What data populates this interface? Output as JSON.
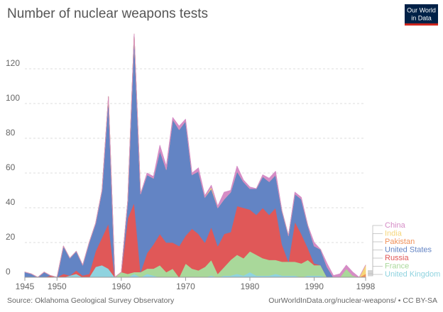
{
  "chart_data": {
    "type": "stacked-area",
    "title": "Number of nuclear weapons tests",
    "source": "Source: Oklahoma Geological Survey Observatory",
    "credit": "OurWorldInData.org/nuclear-weapons/ • CC BY-SA",
    "logo": [
      "Our World",
      "in Data"
    ],
    "x": [
      1945,
      1946,
      1947,
      1948,
      1949,
      1950,
      1951,
      1952,
      1953,
      1954,
      1955,
      1956,
      1957,
      1958,
      1959,
      1960,
      1961,
      1962,
      1963,
      1964,
      1965,
      1966,
      1967,
      1968,
      1969,
      1970,
      1971,
      1972,
      1973,
      1974,
      1975,
      1976,
      1977,
      1978,
      1979,
      1980,
      1981,
      1982,
      1983,
      1984,
      1985,
      1986,
      1987,
      1988,
      1989,
      1990,
      1991,
      1992,
      1993,
      1994,
      1995,
      1996,
      1997,
      1998
    ],
    "xlim": [
      1945,
      1998
    ],
    "xticks": [
      1945,
      1950,
      1960,
      1970,
      1980,
      1990,
      1998
    ],
    "ylim": [
      0,
      140
    ],
    "yticks": [
      0,
      20,
      40,
      60,
      80,
      100,
      120
    ],
    "grid": true,
    "series": [
      {
        "name": "United Kingdom",
        "color": "#8fd3df",
        "values": [
          0,
          0,
          0,
          0,
          0,
          0,
          0,
          1,
          2,
          0,
          0,
          6,
          7,
          5,
          0,
          0,
          0,
          2,
          0,
          2,
          1,
          0,
          0,
          0,
          0,
          0,
          0,
          0,
          0,
          1,
          0,
          1,
          1,
          2,
          1,
          3,
          1,
          1,
          1,
          2,
          1,
          1,
          1,
          0,
          1,
          1,
          1,
          0,
          0,
          0,
          0,
          0,
          0,
          0
        ]
      },
      {
        "name": "France",
        "color": "#a9d89a",
        "values": [
          0,
          0,
          0,
          0,
          0,
          0,
          0,
          0,
          0,
          0,
          0,
          0,
          0,
          0,
          0,
          3,
          2,
          1,
          3,
          3,
          4,
          7,
          3,
          5,
          0,
          8,
          5,
          4,
          6,
          9,
          2,
          5,
          9,
          11,
          10,
          12,
          12,
          10,
          9,
          8,
          8,
          8,
          8,
          8,
          9,
          6,
          6,
          0,
          0,
          0,
          5,
          1,
          0,
          0
        ]
      },
      {
        "name": "Russia",
        "color": "#e05858",
        "values": [
          0,
          0,
          0,
          0,
          1,
          0,
          2,
          0,
          2,
          1,
          2,
          9,
          16,
          26,
          0,
          0,
          32,
          40,
          0,
          9,
          14,
          18,
          17,
          15,
          18,
          16,
          23,
          21,
          14,
          19,
          16,
          19,
          16,
          28,
          29,
          24,
          23,
          29,
          26,
          30,
          10,
          0,
          23,
          17,
          7,
          1,
          0,
          0,
          0,
          0,
          0,
          0,
          0,
          0
        ]
      },
      {
        "name": "United States",
        "color": "#6384c4",
        "values": [
          3,
          2,
          0,
          3,
          0,
          0,
          16,
          10,
          11,
          6,
          18,
          16,
          27,
          73,
          0,
          0,
          10,
          97,
          45,
          45,
          38,
          48,
          42,
          71,
          67,
          66,
          31,
          36,
          26,
          22,
          22,
          20,
          23,
          20,
          15,
          12,
          15,
          18,
          19,
          19,
          19,
          15,
          16,
          20,
          13,
          10,
          9,
          6,
          0,
          0,
          0,
          0,
          0,
          0
        ]
      },
      {
        "name": "Pakistan",
        "color": "#f0925a",
        "values": [
          0,
          0,
          0,
          0,
          0,
          0,
          0,
          0,
          0,
          0,
          0,
          0,
          0,
          0,
          0,
          0,
          0,
          0,
          0,
          0,
          0,
          0,
          0,
          0,
          0,
          0,
          0,
          0,
          0,
          0,
          0,
          0,
          0,
          0,
          0,
          0,
          0,
          0,
          0,
          0,
          0,
          0,
          0,
          0,
          0,
          0,
          0,
          0,
          0,
          0,
          0,
          0,
          0,
          2
        ]
      },
      {
        "name": "India",
        "color": "#f6d67a",
        "values": [
          0,
          0,
          0,
          0,
          0,
          0,
          0,
          0,
          0,
          0,
          0,
          0,
          0,
          0,
          0,
          0,
          0,
          0,
          0,
          0,
          0,
          0,
          0,
          0,
          0,
          0,
          0,
          0,
          0,
          1,
          0,
          0,
          0,
          0,
          0,
          0,
          0,
          0,
          0,
          0,
          0,
          0,
          0,
          0,
          0,
          0,
          0,
          0,
          0,
          0,
          0,
          0,
          0,
          5
        ]
      },
      {
        "name": "China",
        "color": "#d58cc6",
        "values": [
          0,
          0,
          0,
          0,
          0,
          0,
          0,
          0,
          0,
          0,
          0,
          0,
          0,
          0,
          0,
          0,
          0,
          0,
          0,
          1,
          1,
          3,
          2,
          1,
          2,
          1,
          1,
          2,
          1,
          1,
          1,
          4,
          1,
          3,
          1,
          1,
          0,
          1,
          2,
          2,
          0,
          0,
          1,
          1,
          0,
          2,
          0,
          2,
          1,
          2,
          2,
          2,
          0,
          0
        ]
      }
    ]
  }
}
